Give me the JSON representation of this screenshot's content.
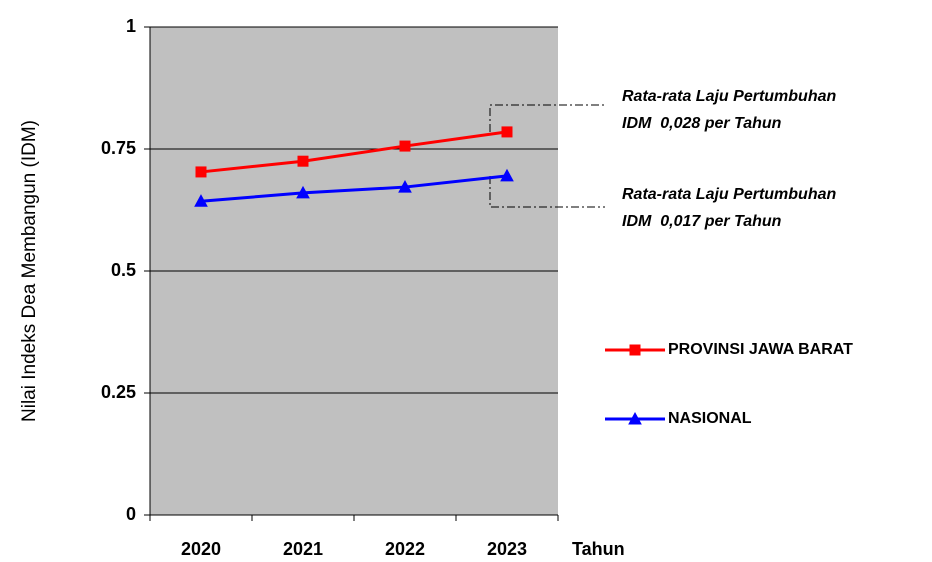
{
  "chart_data": {
    "type": "line",
    "y_label": "Nilai Indeks Dea Membangun (IDM)",
    "x_label": "Tahun",
    "categories": [
      "2020",
      "2021",
      "2022",
      "2023"
    ],
    "series": [
      {
        "name": "PROVINSI JAWA BARAT",
        "color": "#ff0000",
        "marker": "square",
        "values": [
          0.703,
          0.725,
          0.756,
          0.785
        ]
      },
      {
        "name": "NASIONAL",
        "color": "#0000ff",
        "marker": "triangle",
        "values": [
          0.643,
          0.66,
          0.672,
          0.695
        ]
      }
    ],
    "ylim": [
      0,
      1
    ],
    "yticks": [
      0,
      0.25,
      0.5,
      0.75,
      1
    ],
    "grid": true,
    "legend": "right",
    "background": "#c0c0c0",
    "annotations": [
      {
        "lines": [
          "Rata-rata Laju Pertumbuhan",
          "IDM  0,028 per Tahun"
        ]
      },
      {
        "lines": [
          "Rata-rata Laju Pertumbuhan",
          "IDM  0,017 per Tahun"
        ]
      }
    ]
  }
}
